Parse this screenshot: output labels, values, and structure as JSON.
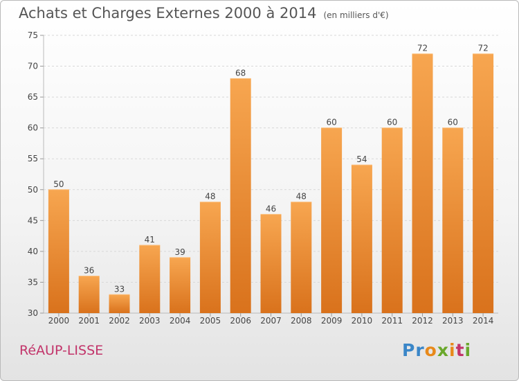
{
  "header": {
    "title": "Achats et Charges Externes 2000 à 2014",
    "unit": "(en milliers d'€)"
  },
  "footer": {
    "town": "RéAUP-LISSE",
    "logo_letters": [
      {
        "ch": "P",
        "color": "#3a86c8"
      },
      {
        "ch": "r",
        "color": "#3a86c8"
      },
      {
        "ch": "o",
        "color": "#e8891a"
      },
      {
        "ch": "x",
        "color": "#6aa82c"
      },
      {
        "ch": "i",
        "color": "#e8891a"
      },
      {
        "ch": "t",
        "color": "#c2346a"
      },
      {
        "ch": "i",
        "color": "#6aa82c"
      }
    ]
  },
  "chart_data": {
    "type": "bar",
    "categories": [
      "2000",
      "2001",
      "2002",
      "2003",
      "2004",
      "2005",
      "2006",
      "2007",
      "2008",
      "2009",
      "2010",
      "2011",
      "2012",
      "2013",
      "2014"
    ],
    "values": [
      50,
      36,
      33,
      41,
      39,
      48,
      68,
      46,
      48,
      60,
      54,
      60,
      72,
      60,
      72
    ],
    "ylim": [
      30,
      75
    ],
    "yticks": [
      30,
      35,
      40,
      45,
      50,
      55,
      60,
      65,
      70,
      75
    ],
    "grid": true,
    "bar_color": "#f0953d"
  }
}
